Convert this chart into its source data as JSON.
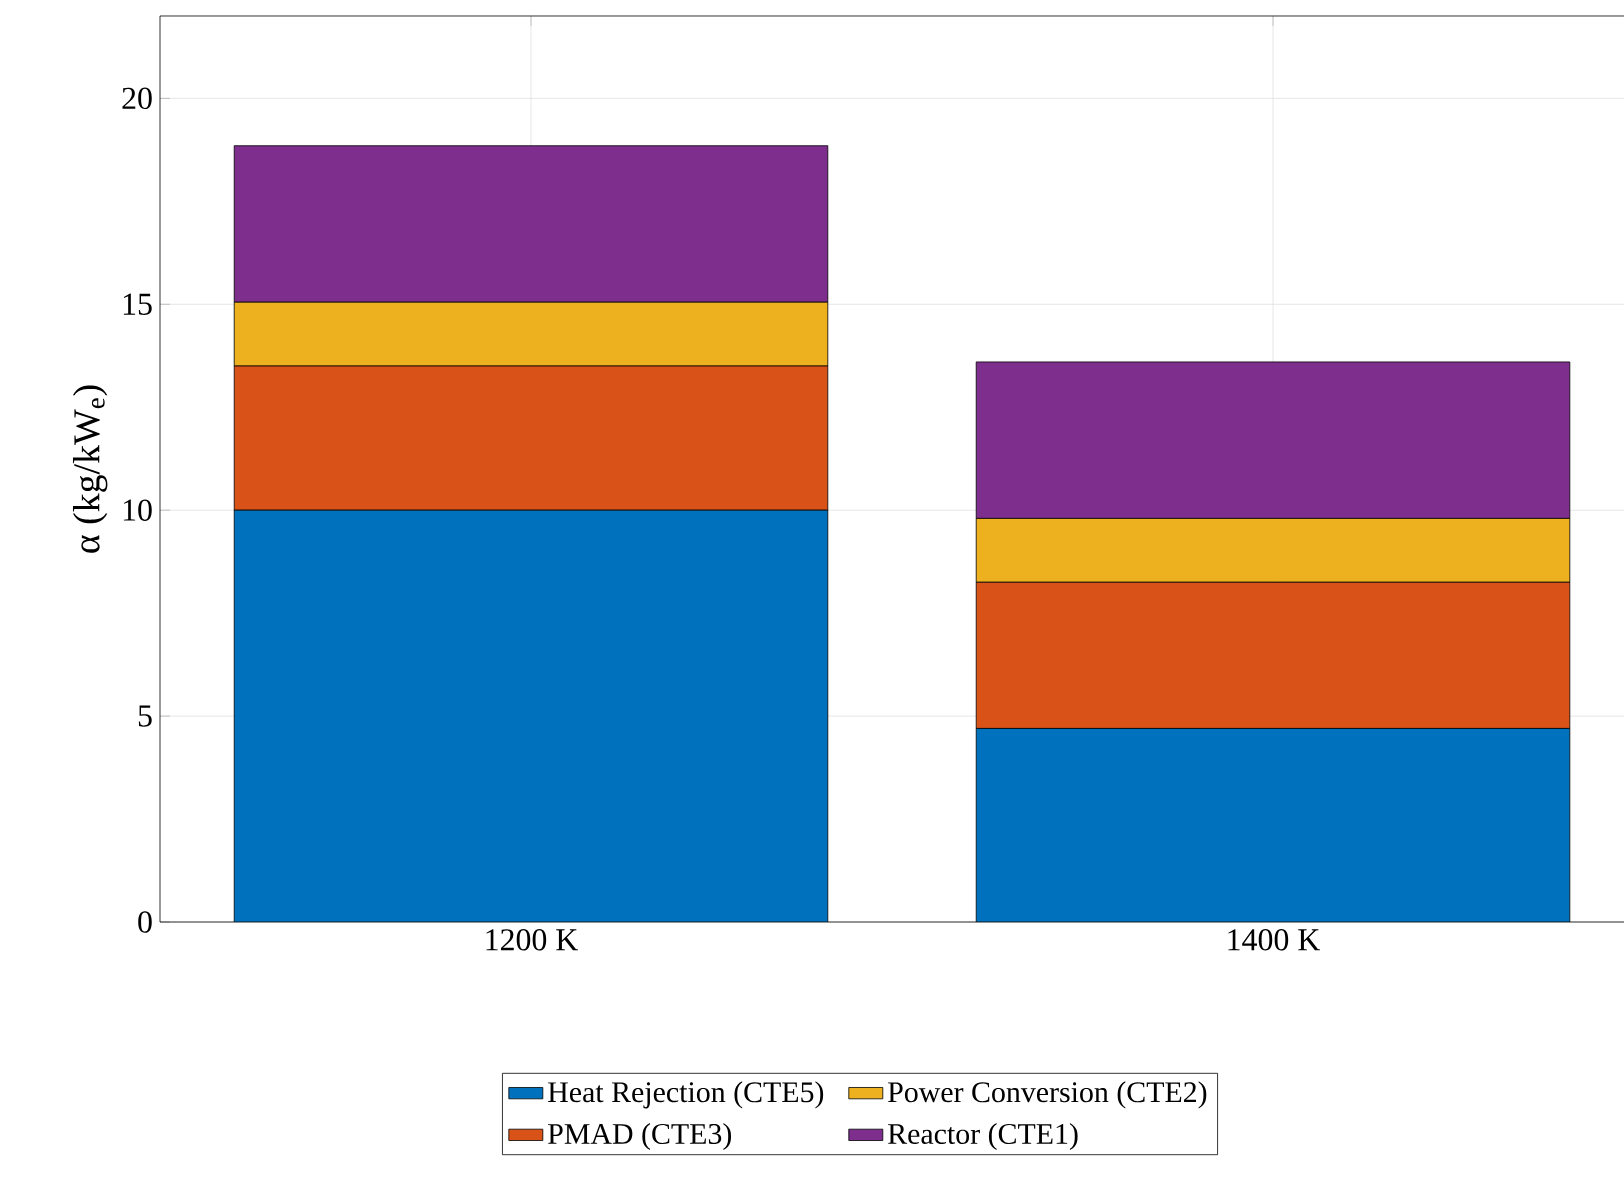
{
  "chart_data": {
    "type": "bar",
    "stacked": true,
    "ylabel": "α (kg/kW$_{e}$)",
    "categories": [
      "1200 K",
      "1400 K"
    ],
    "series": [
      {
        "name": "Heat Rejection (CTE5)",
        "color": "#0072bd",
        "values": [
          10.0,
          4.7
        ]
      },
      {
        "name": "PMAD (CTE3)",
        "color": "#d95319",
        "values": [
          3.5,
          3.55
        ]
      },
      {
        "name": "Power Conversion (CTE2)",
        "color": "#edb120",
        "values": [
          1.55,
          1.55
        ]
      },
      {
        "name": "Reactor (CTE1)",
        "color": "#7e2f8e",
        "values": [
          3.8,
          3.8
        ]
      }
    ],
    "ylim": [
      0,
      22
    ],
    "yticks": [
      0,
      5,
      10,
      15,
      20
    ],
    "grid": true,
    "legend": "bottom"
  }
}
